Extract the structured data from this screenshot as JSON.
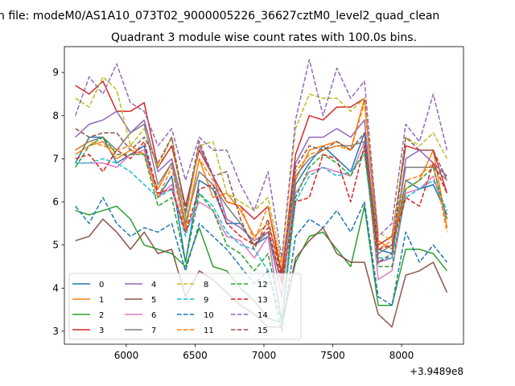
{
  "figure": {
    "suptitle": "n file: modeM0/AS1A10_073T02_9000005226_36627cztM0_level2_quad_clean",
    "title": "Quadrant 3 module wise count rates with 100.0s bins.",
    "x_offset_label": "+3.9489e8"
  },
  "chart_data": {
    "type": "line",
    "title": "Quadrant 3 module wise count rates with 100.0s bins.",
    "xlabel": "",
    "ylabel": "",
    "x_offset": "+3.9489e8",
    "xlim": [
      5550,
      8450
    ],
    "ylim": [
      2.7,
      9.6
    ],
    "xticks": [
      6000,
      6500,
      7000,
      7500,
      8000
    ],
    "yticks": [
      3,
      4,
      5,
      6,
      7,
      8,
      9
    ],
    "x": [
      5630,
      5730,
      5830,
      5930,
      6030,
      6130,
      6230,
      6330,
      6430,
      6530,
      6630,
      6730,
      6830,
      6930,
      7030,
      7130,
      7230,
      7330,
      7430,
      7530,
      7630,
      7730,
      7830,
      7930,
      8030,
      8130,
      8230,
      8330
    ],
    "legend": {
      "position": "lower-left",
      "columns": 4
    },
    "series": [
      {
        "name": "0",
        "color": "#1f77b4",
        "dash": "solid",
        "values": [
          6.9,
          7.5,
          7.5,
          6.9,
          7.1,
          7.3,
          6.1,
          6.6,
          4.6,
          6.5,
          6.3,
          5.5,
          5.5,
          5.0,
          5.2,
          3.2,
          6.4,
          6.9,
          7.3,
          7.0,
          6.7,
          7.6,
          4.9,
          4.8,
          6.5,
          6.3,
          6.4,
          5.7
        ]
      },
      {
        "name": "1",
        "color": "#ff7f0e",
        "dash": "solid",
        "values": [
          7.1,
          7.3,
          7.4,
          7.0,
          7.2,
          7.1,
          6.3,
          6.9,
          5.4,
          7.0,
          6.1,
          6.2,
          5.8,
          5.2,
          5.5,
          4.4,
          6.5,
          7.2,
          7.3,
          7.4,
          7.2,
          8.4,
          5.1,
          4.9,
          6.3,
          6.5,
          7.2,
          5.4
        ]
      },
      {
        "name": "2",
        "color": "#2ca02c",
        "dash": "solid",
        "values": [
          5.8,
          5.7,
          5.8,
          5.9,
          5.6,
          5.0,
          4.9,
          4.8,
          4.5,
          5.4,
          4.5,
          4.4,
          4.0,
          3.7,
          3.3,
          3.2,
          4.6,
          5.2,
          5.3,
          4.9,
          4.5,
          5.9,
          3.6,
          3.6,
          4.9,
          4.9,
          4.8,
          4.4
        ]
      },
      {
        "name": "3",
        "color": "#d62728",
        "dash": "solid",
        "values": [
          8.7,
          8.5,
          8.8,
          8.1,
          8.1,
          8.3,
          6.8,
          7.3,
          5.9,
          7.2,
          6.6,
          6.0,
          5.9,
          5.6,
          5.9,
          4.3,
          7.1,
          8.0,
          7.9,
          8.2,
          8.2,
          8.4,
          5.0,
          5.2,
          7.3,
          7.2,
          7.2,
          6.2
        ]
      },
      {
        "name": "4",
        "color": "#9467bd",
        "dash": "solid",
        "values": [
          7.5,
          7.8,
          7.9,
          8.1,
          7.6,
          7.9,
          6.7,
          7.0,
          5.7,
          7.3,
          6.6,
          5.6,
          5.4,
          5.1,
          5.3,
          4.1,
          6.9,
          7.5,
          7.5,
          7.7,
          7.5,
          7.9,
          4.6,
          4.7,
          7.0,
          7.2,
          6.9,
          6.6
        ]
      },
      {
        "name": "5",
        "color": "#8c564b",
        "dash": "solid",
        "values": [
          5.1,
          5.2,
          5.6,
          5.3,
          4.9,
          5.3,
          4.8,
          4.9,
          3.8,
          4.4,
          4.2,
          3.9,
          3.6,
          3.4,
          3.1,
          3.1,
          4.7,
          5.1,
          5.4,
          4.8,
          4.6,
          4.6,
          3.4,
          3.1,
          4.3,
          4.4,
          4.6,
          3.9
        ]
      },
      {
        "name": "6",
        "color": "#e377c2",
        "dash": "solid",
        "values": [
          6.9,
          6.9,
          6.9,
          6.8,
          7.1,
          7.2,
          6.1,
          6.4,
          5.3,
          6.0,
          5.8,
          5.2,
          5.1,
          4.7,
          5.2,
          3.2,
          6.2,
          6.7,
          6.8,
          6.7,
          6.6,
          7.4,
          4.2,
          4.4,
          6.2,
          6.3,
          6.6,
          5.6
        ]
      },
      {
        "name": "7",
        "color": "#7f7f7f",
        "dash": "solid",
        "values": [
          7.2,
          7.4,
          7.5,
          7.2,
          7.6,
          7.8,
          6.4,
          6.9,
          5.5,
          6.7,
          6.4,
          5.9,
          5.5,
          5.0,
          5.3,
          3.8,
          6.6,
          7.0,
          7.2,
          7.3,
          7.3,
          7.4,
          4.8,
          5.0,
          6.8,
          6.8,
          6.8,
          6.5
        ]
      },
      {
        "name": "8",
        "color": "#bcbd22",
        "dash": "dashed",
        "values": [
          8.4,
          8.2,
          8.9,
          8.6,
          7.3,
          7.7,
          6.8,
          7.5,
          5.6,
          7.3,
          7.4,
          6.2,
          6.0,
          5.8,
          6.1,
          4.6,
          7.7,
          8.5,
          8.4,
          8.4,
          8.1,
          8.4,
          5.3,
          5.1,
          7.5,
          7.3,
          7.6,
          7.0
        ]
      },
      {
        "name": "9",
        "color": "#17becf",
        "dash": "dashed",
        "values": [
          6.9,
          6.9,
          7.0,
          6.9,
          6.7,
          6.4,
          6.1,
          6.3,
          5.2,
          6.2,
          5.9,
          5.3,
          5.0,
          4.9,
          4.4,
          3.2,
          6.0,
          6.6,
          6.8,
          6.6,
          6.7,
          7.1,
          4.7,
          4.7,
          6.1,
          6.3,
          6.5,
          5.8
        ]
      },
      {
        "name": "10",
        "color": "#1f77b4",
        "dash": "dashed",
        "values": [
          5.9,
          5.5,
          6.1,
          5.5,
          5.2,
          5.4,
          5.3,
          5.5,
          4.4,
          5.5,
          5.2,
          4.9,
          4.5,
          4.1,
          4.4,
          3.0,
          5.2,
          5.6,
          5.4,
          5.8,
          5.3,
          6.0,
          3.8,
          3.6,
          5.3,
          4.6,
          5.0,
          4.6
        ]
      },
      {
        "name": "11",
        "color": "#ff7f0e",
        "dash": "dashed",
        "values": [
          7.2,
          7.4,
          7.3,
          7.2,
          7.3,
          7.1,
          6.1,
          6.8,
          5.3,
          7.0,
          6.5,
          6.0,
          5.9,
          5.1,
          5.9,
          4.5,
          6.7,
          7.1,
          7.2,
          7.3,
          7.2,
          8.3,
          4.9,
          5.1,
          6.5,
          6.6,
          6.9,
          5.3
        ]
      },
      {
        "name": "12",
        "color": "#2ca02c",
        "dash": "dashed",
        "values": [
          6.8,
          7.3,
          7.5,
          7.1,
          7.1,
          7.1,
          5.9,
          6.1,
          4.6,
          6.2,
          5.8,
          5.0,
          4.8,
          4.4,
          4.8,
          3.3,
          6.1,
          6.8,
          7.1,
          6.9,
          6.6,
          7.2,
          4.5,
          4.5,
          6.3,
          6.5,
          6.8,
          5.6
        ]
      },
      {
        "name": "13",
        "color": "#d62728",
        "dash": "dashed",
        "values": [
          7.0,
          7.1,
          6.7,
          7.2,
          7.0,
          7.4,
          6.2,
          6.3,
          5.3,
          6.3,
          6.4,
          5.5,
          5.2,
          5.0,
          5.4,
          4.1,
          6.0,
          6.1,
          7.1,
          7.0,
          6.0,
          7.3,
          4.9,
          5.0,
          6.1,
          5.9,
          6.9,
          6.2
        ]
      },
      {
        "name": "14",
        "color": "#9467bd",
        "dash": "dashed",
        "values": [
          8.0,
          8.9,
          8.5,
          9.2,
          8.3,
          8.1,
          7.3,
          7.7,
          6.5,
          7.5,
          7.2,
          7.2,
          6.4,
          5.8,
          6.7,
          4.7,
          7.9,
          9.3,
          8.0,
          9.1,
          8.4,
          8.8,
          5.2,
          5.5,
          7.8,
          7.4,
          8.5,
          7.2
        ]
      },
      {
        "name": "15",
        "color": "#8c564b",
        "dash": "dashed",
        "values": [
          7.7,
          7.5,
          7.6,
          7.6,
          7.2,
          7.5,
          6.9,
          7.5,
          5.8,
          7.4,
          6.6,
          6.7,
          5.6,
          4.9,
          5.6,
          4.2,
          6.8,
          7.3,
          7.2,
          7.4,
          7.2,
          7.6,
          4.6,
          4.8,
          7.5,
          7.2,
          7.2,
          6.5
        ]
      }
    ]
  }
}
